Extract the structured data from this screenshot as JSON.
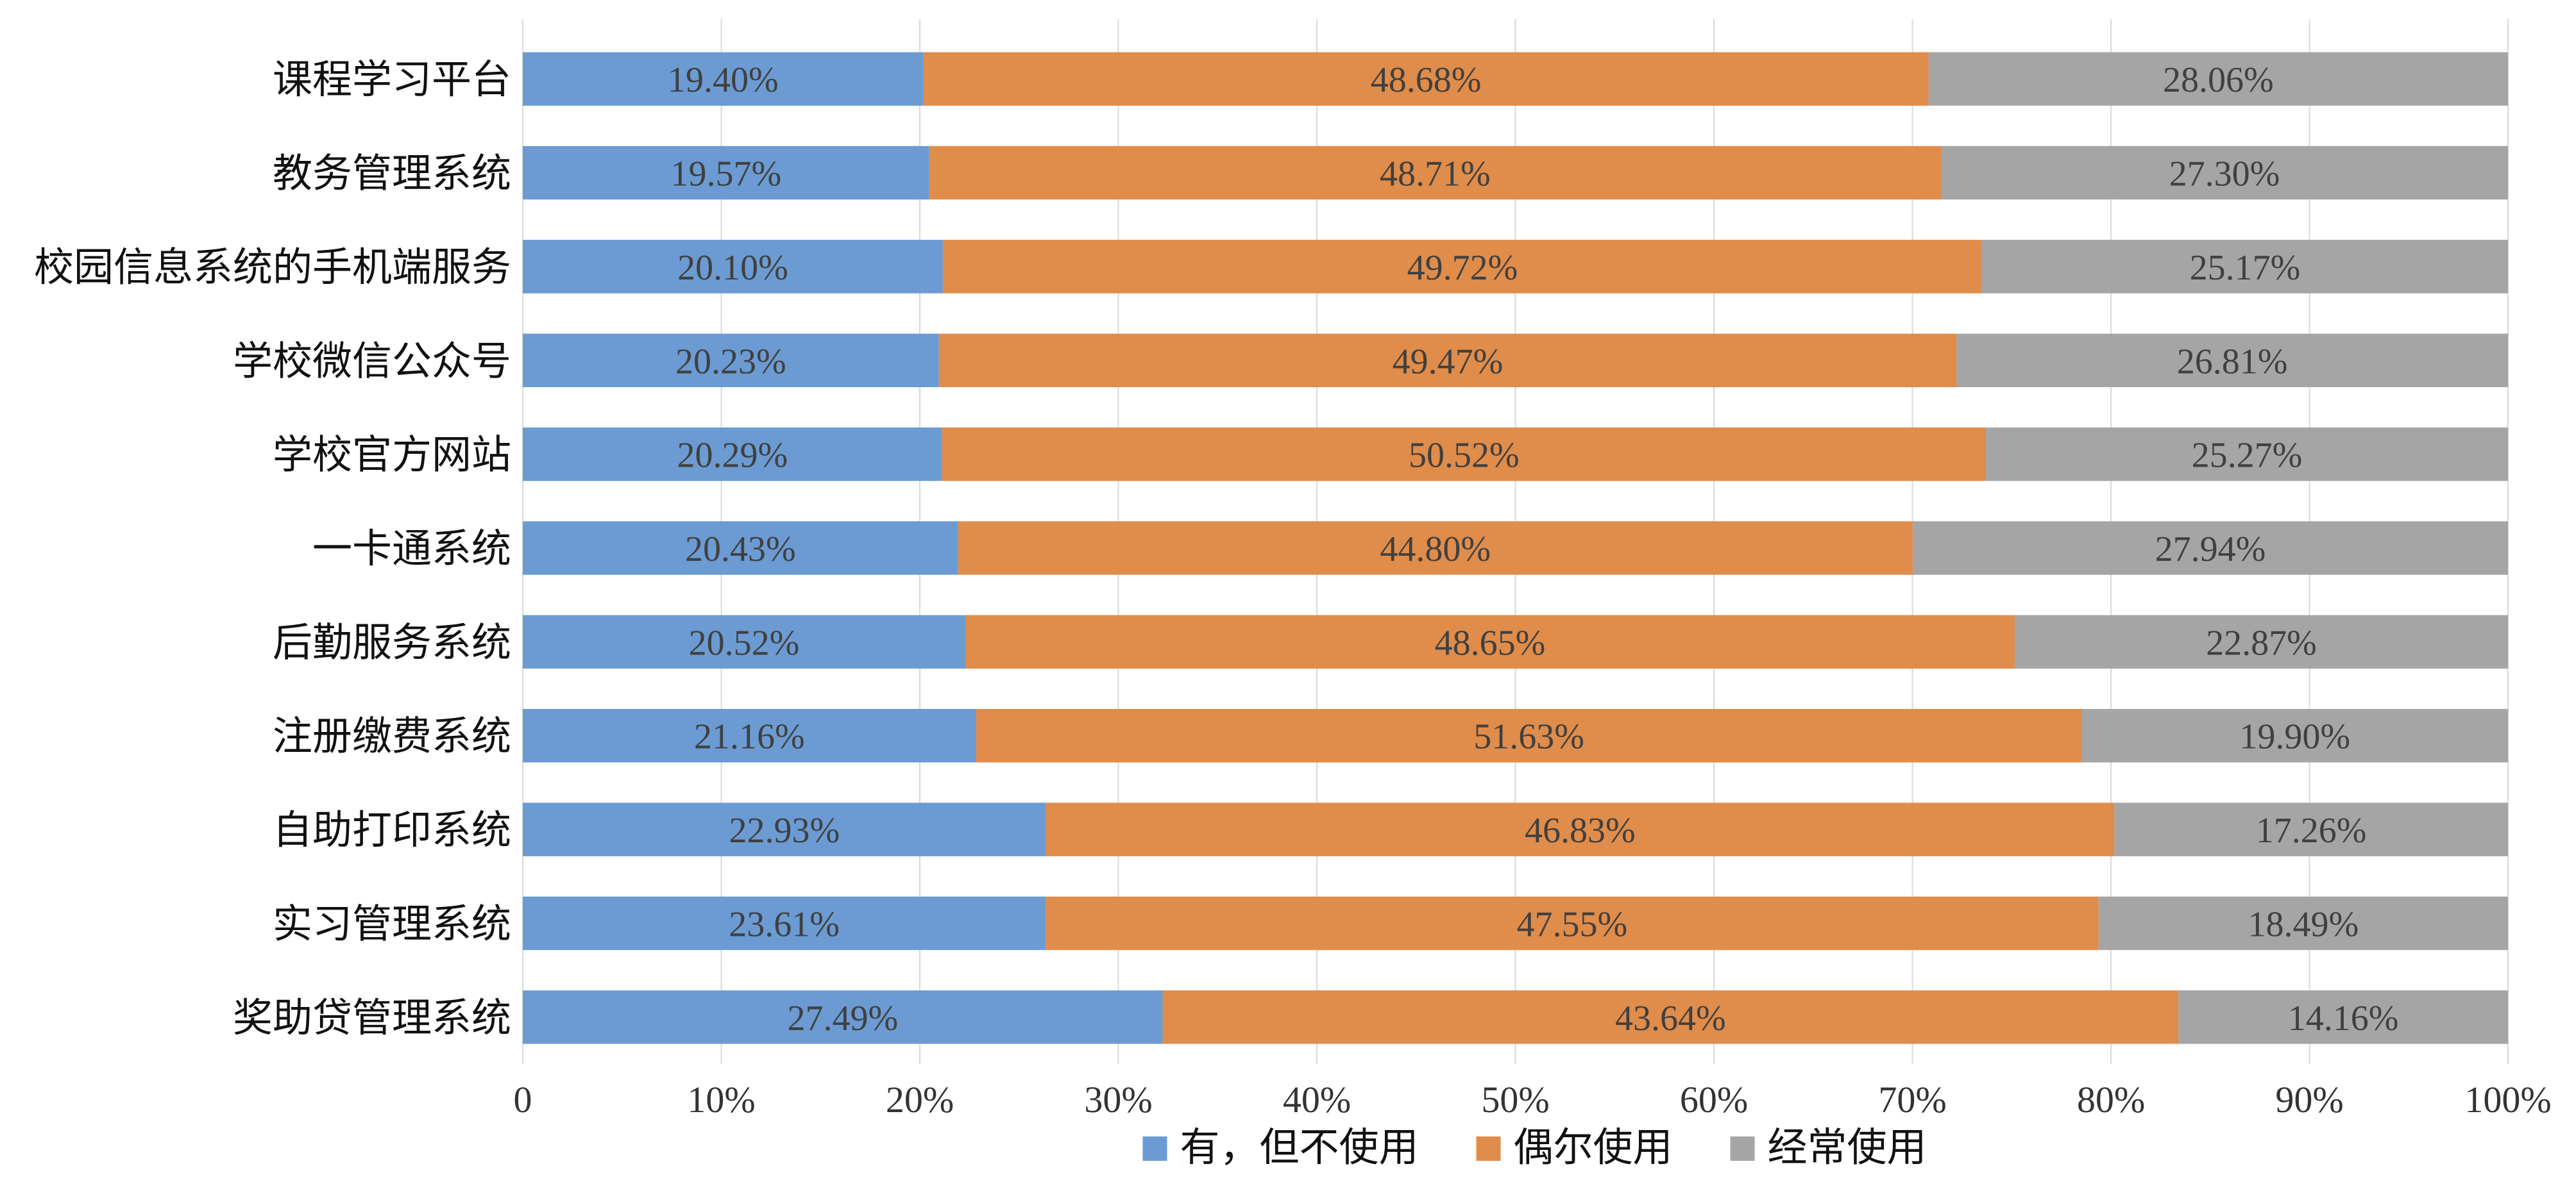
{
  "chart_data": {
    "type": "bar",
    "orientation": "horizontal",
    "stacked": true,
    "percent_stacked": true,
    "categories": [
      "课程学习平台",
      "教务管理系统",
      "校园信息系统的手机端服务",
      "学校微信公众号",
      "学校官方网站",
      "一卡通系统",
      "后勤服务系统",
      "注册缴费系统",
      "自助打印系统",
      "实习管理系统",
      "奖助贷管理系统"
    ],
    "series": [
      {
        "name": "有，但不使用",
        "color": "#6b9bd2",
        "values": [
          19.4,
          19.57,
          20.1,
          20.23,
          20.29,
          20.43,
          20.52,
          21.16,
          22.93,
          23.61,
          27.49
        ],
        "labels": [
          "19.40%",
          "19.57%",
          "20.10%",
          "20.23%",
          "20.29%",
          "20.43%",
          "20.52%",
          "21.16%",
          "22.93%",
          "23.61%",
          "27.49%"
        ]
      },
      {
        "name": "偶尔使用",
        "color": "#e08c4a",
        "values": [
          48.68,
          48.71,
          49.72,
          49.47,
          50.52,
          44.8,
          48.65,
          51.63,
          46.83,
          47.55,
          43.64
        ],
        "labels": [
          "48.68%",
          "48.71%",
          "49.72%",
          "49.47%",
          "50.52%",
          "44.80%",
          "48.65%",
          "51.63%",
          "46.83%",
          "47.55%",
          "43.64%"
        ]
      },
      {
        "name": "经常使用",
        "color": "#a5a5a5",
        "values": [
          28.06,
          27.3,
          25.17,
          26.81,
          25.27,
          27.94,
          22.87,
          19.9,
          17.26,
          18.49,
          14.16
        ],
        "labels": [
          "28.06%",
          "27.30%",
          "25.17%",
          "26.81%",
          "25.27%",
          "27.94%",
          "22.87%",
          "19.90%",
          "17.26%",
          "18.49%",
          "14.16%"
        ]
      }
    ],
    "xlim": [
      0,
      100
    ],
    "x_ticks": [
      "0",
      "10%",
      "20%",
      "30%",
      "40%",
      "50%",
      "60%",
      "70%",
      "80%",
      "90%",
      "100%"
    ],
    "grid": true,
    "legend_position": "bottom"
  }
}
